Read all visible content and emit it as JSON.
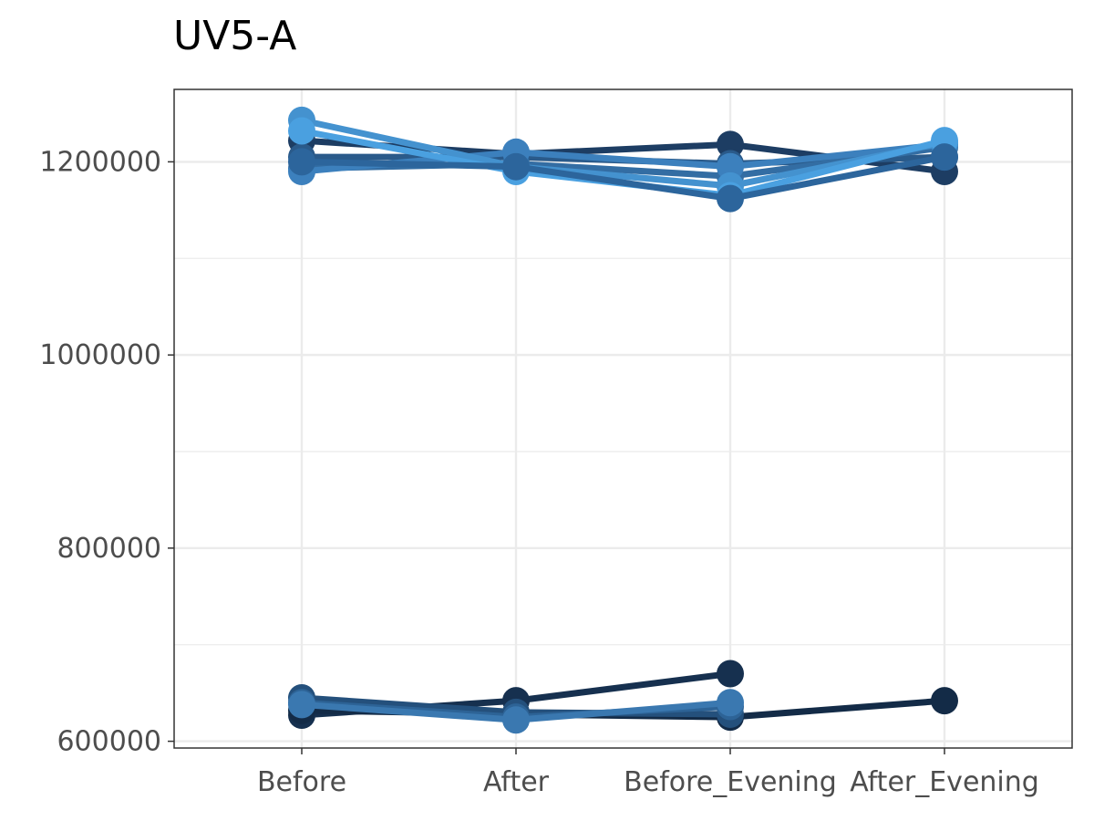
{
  "chart_data": {
    "type": "line",
    "title": "UV5-A",
    "xlabel": "",
    "ylabel": "",
    "categories": [
      "Before",
      "After",
      "Before_Evening",
      "After_Evening"
    ],
    "y_ticks": [
      600000,
      800000,
      1000000,
      1200000
    ],
    "y_tick_labels": [
      "600000",
      "800000",
      "1000000",
      "1200000"
    ],
    "ylim": [
      593000,
      1275000
    ],
    "grid": true,
    "legend": "none",
    "series": [
      {
        "values": [
          1222000,
          1208000,
          1218000,
          1190000
        ],
        "color": "#1d3d63"
      },
      {
        "values": [
          1205000,
          1205000,
          1198000,
          1205000
        ],
        "color": "#2a5a8a"
      },
      {
        "values": [
          1193000,
          1198000,
          1185000,
          1215000
        ],
        "color": "#336da3"
      },
      {
        "values": [
          1190000,
          1210000,
          1195000,
          1218000
        ],
        "color": "#3c80bd"
      },
      {
        "values": [
          1243000,
          1195000,
          1175000,
          1220000
        ],
        "color": "#4492cf"
      },
      {
        "values": [
          1232000,
          1190000,
          1165000,
          1222000
        ],
        "color": "#4aa0e0"
      },
      {
        "values": [
          1200000,
          1195000,
          1162000,
          1205000
        ],
        "color": "#2c659c"
      },
      {
        "values": [
          627000,
          642000,
          670000,
          null
        ],
        "color": "#16304f"
      },
      {
        "values": [
          632000,
          628000,
          625000,
          642000
        ],
        "color": "#132b47"
      },
      {
        "values": [
          645000,
          630000,
          628000,
          null
        ],
        "color": "#24507c"
      },
      {
        "values": [
          640000,
          625000,
          636000,
          null
        ],
        "color": "#2d6396"
      },
      {
        "values": [
          638000,
          622000,
          640000,
          null
        ],
        "color": "#3a78b0"
      }
    ]
  }
}
